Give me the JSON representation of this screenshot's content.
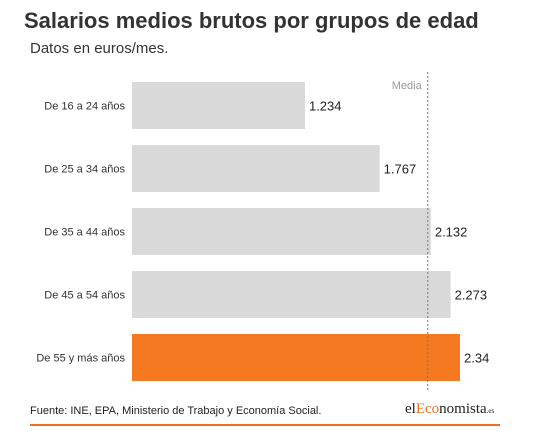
{
  "title": "Salarios medios brutos por grupos de edad",
  "subtitle": "Datos en euros/mes.",
  "chart_data": {
    "type": "bar",
    "orientation": "horizontal",
    "categories": [
      "De 16 a 24 años",
      "De 25 a 34 años",
      "De 35 a 44 años",
      "De 45 a 54 años",
      "De 55 y más años"
    ],
    "values": [
      1.234,
      1.767,
      2.132,
      2.273,
      2.34
    ],
    "value_labels": [
      "1.234",
      "1.767",
      "2.132",
      "2.273",
      "2.34"
    ],
    "highlight_index": 4,
    "reference_line": {
      "label": "Media",
      "value": 2.11
    },
    "xlim": [
      0,
      2.34
    ],
    "grid": false,
    "colors": {
      "bar": "#d9d9d9",
      "highlight": "#f47920",
      "reference": "#777777"
    }
  },
  "footer": {
    "source": "Fuente: INE, EPA, Ministerio de Trabajo y Economía Social.",
    "logo": {
      "prefix": "el",
      "accent": "Eco",
      "suffix": "nomista",
      "tld": ".es"
    },
    "accent_color": "#f07020"
  }
}
